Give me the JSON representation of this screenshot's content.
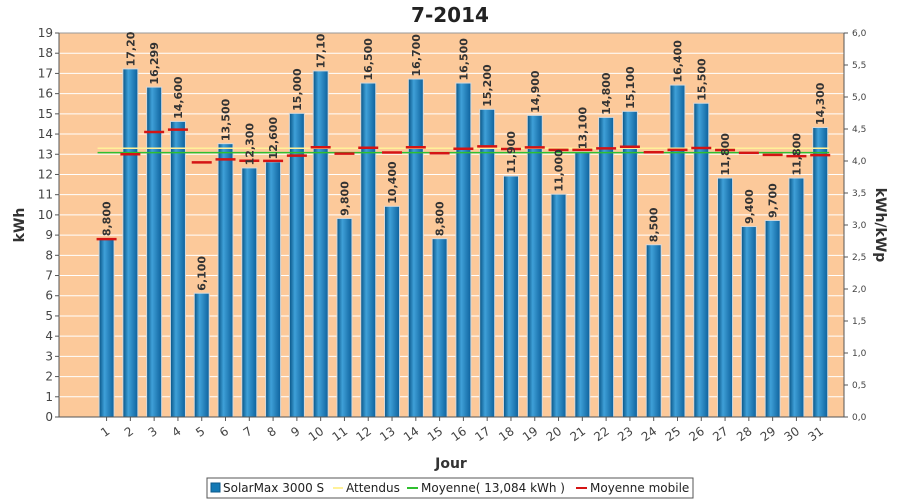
{
  "chart_data": {
    "type": "bar",
    "title": "7-2014",
    "xlabel": "Jour",
    "ylabel": "kWh",
    "ylabel_right": "kWh/kWp",
    "ylim": [
      0,
      19
    ],
    "yticks": [
      "0",
      "1",
      "2",
      "3",
      "4",
      "5",
      "6",
      "7",
      "8",
      "9",
      "10",
      "11",
      "12",
      "13",
      "14",
      "15",
      "16",
      "17",
      "18",
      "19"
    ],
    "y2lim": [
      0,
      6
    ],
    "y2ticks": [
      "0,0",
      "0,5",
      "1,0",
      "1,5",
      "2,0",
      "2,5",
      "3,0",
      "3,5",
      "4,0",
      "4,5",
      "5,0",
      "5,5",
      "6,0"
    ],
    "categories": [
      "1",
      "2",
      "3",
      "4",
      "5",
      "6",
      "7",
      "8",
      "9",
      "10",
      "11",
      "12",
      "13",
      "14",
      "15",
      "16",
      "17",
      "18",
      "19",
      "20",
      "21",
      "22",
      "23",
      "24",
      "25",
      "26",
      "27",
      "28",
      "29",
      "30",
      "31"
    ],
    "series": [
      {
        "name": "SolarMax 3000 S",
        "values": [
          8.8,
          17.2,
          16.299,
          14.6,
          6.1,
          13.5,
          12.3,
          12.6,
          15.0,
          17.1,
          9.8,
          16.5,
          10.4,
          16.7,
          8.8,
          16.5,
          15.2,
          11.9,
          14.9,
          11.0,
          13.1,
          14.8,
          15.1,
          8.5,
          16.4,
          15.5,
          11.8,
          9.4,
          9.7,
          11.8,
          14.3
        ],
        "labels": [
          "8,800",
          "17,20",
          "16,299",
          "14,600",
          "6,100",
          "13,500",
          "12,300",
          "12,600",
          "15,000",
          "17,10",
          "9,800",
          "16,500",
          "10,400",
          "16,700",
          "8,800",
          "16,500",
          "15,200",
          "11,900",
          "14,900",
          "11,000",
          "13,100",
          "14,800",
          "15,100",
          "8,500",
          "16,400",
          "15,500",
          "11,800",
          "9,400",
          "9,700",
          "11,800",
          "14,300"
        ]
      },
      {
        "name": "Attendus",
        "value": 13.3
      },
      {
        "name": "Moyenne( 13,084 kWh )",
        "value": 13.084
      },
      {
        "name": "Moyenne mobile",
        "values": [
          8.8,
          13.0,
          14.1,
          14.22,
          12.6,
          12.75,
          12.68,
          12.67,
          12.93,
          13.35,
          13.03,
          13.32,
          13.09,
          13.35,
          13.05,
          13.27,
          13.39,
          13.26,
          13.34,
          13.22,
          13.22,
          13.29,
          13.37,
          13.1,
          13.22,
          13.31,
          13.21,
          13.07,
          12.97,
          12.91,
          12.96
        ]
      }
    ],
    "colors": {
      "plot_background": "#fcc99a",
      "bar": "#1479b5",
      "bar_light": "#3fa0d8",
      "bar_dark": "#0c5a8c",
      "attendus": "#fff199",
      "moyenne": "#2fbf2f",
      "moyenne_mobile": "#d41414",
      "grid": "#ffffff"
    },
    "grid": true,
    "legend_position": "bottom"
  },
  "legend": {
    "items": [
      {
        "label": "SolarMax 3000 S",
        "icon": "bar-swatch"
      },
      {
        "label": "Attendus",
        "icon": "line-swatch"
      },
      {
        "label": "Moyenne( 13,084 kWh )",
        "icon": "line-swatch"
      },
      {
        "label": "Moyenne mobile",
        "icon": "line-swatch"
      }
    ]
  }
}
